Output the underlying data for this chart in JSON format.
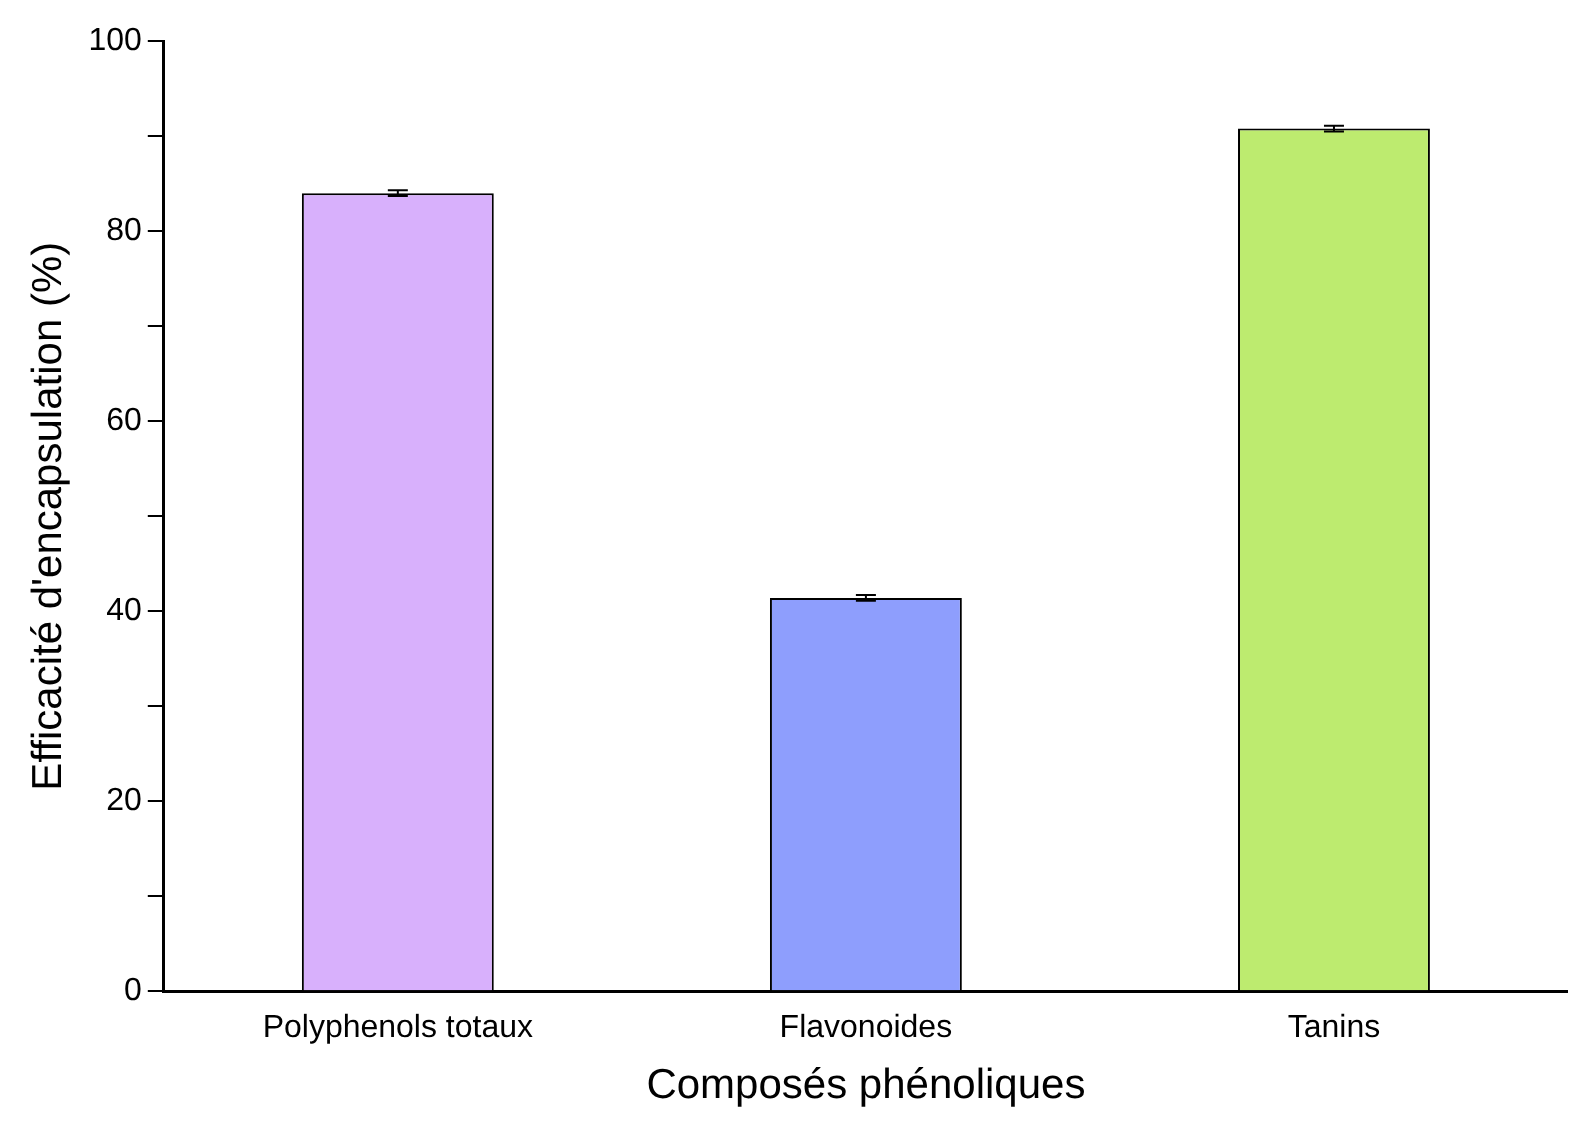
{
  "chart_data": {
    "type": "bar",
    "xlabel": "Composés phénoliques",
    "ylabel": "Efficacité d'encapsulation (%)",
    "categories": [
      "Polyphenols totaux",
      "Flavonoides",
      "Tanins"
    ],
    "values": [
      84,
      41.4,
      90.8
    ],
    "errors": [
      0.3,
      0.3,
      0.3
    ],
    "colors": [
      "#d8b0fc",
      "#8e9efd",
      "#bdeb6f"
    ],
    "ylim": [
      0,
      100
    ],
    "yticks": [
      0,
      {
        "value": 10,
        "label": null
      },
      20,
      {
        "value": 30,
        "label": null
      },
      40,
      {
        "value": 50,
        "label": null
      },
      60,
      {
        "value": 70,
        "label": null
      },
      80,
      {
        "value": 90,
        "label": null
      },
      100
    ],
    "grid": false,
    "legend": false
  }
}
